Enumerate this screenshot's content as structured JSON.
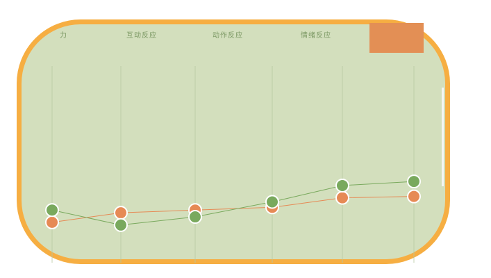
{
  "tabs": [
    {
      "label": "力"
    },
    {
      "label": "互动反应"
    },
    {
      "label": "动作反应"
    },
    {
      "label": "情绪反应"
    },
    {
      "label": ""
    }
  ],
  "colors": {
    "background": "#d3dfbd",
    "frame": "#f6ae42",
    "active_tab": "#e38f55",
    "green_series": "#79a95d",
    "orange_series": "#e68a55",
    "gridline": "#b7c9a1"
  },
  "chart_data": {
    "type": "line",
    "x": [
      1,
      2,
      3,
      4,
      5,
      6
    ],
    "ylim": [
      0,
      100
    ],
    "series": [
      {
        "color": "#79a95d",
        "values": [
          31,
          20,
          26,
          37,
          49,
          52
        ]
      },
      {
        "color": "#e68a55",
        "values": [
          22,
          29,
          31,
          33,
          40,
          41
        ]
      }
    ],
    "grid": true,
    "legend": "none"
  }
}
